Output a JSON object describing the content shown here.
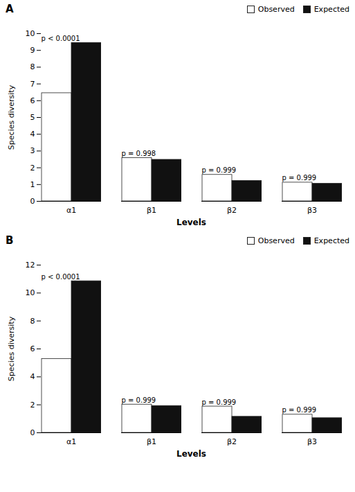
{
  "chart_data": [
    {
      "type": "bar",
      "title": "A",
      "categories": [
        "α1",
        "β1",
        "β2",
        "β3"
      ],
      "series": [
        {
          "name": "Observed",
          "color": "#ffffff",
          "values": [
            6.45,
            2.58,
            1.58,
            1.12
          ]
        },
        {
          "name": "Expected",
          "color": "#111111",
          "values": [
            9.45,
            2.48,
            1.22,
            1.05
          ]
        }
      ],
      "annotations": [
        "p < 0.0001",
        "p = 0.998",
        "p = 0.999",
        "p = 0.999"
      ],
      "xlabel": "Levels",
      "ylabel": "Species diversity",
      "ylim": [
        0,
        10
      ],
      "yticks": [
        0,
        1,
        2,
        3,
        4,
        5,
        6,
        7,
        8,
        9,
        10
      ],
      "legend": "upper right",
      "grid": false
    },
    {
      "type": "bar",
      "title": "B",
      "categories": [
        "α1",
        "β1",
        "β2",
        "β3"
      ],
      "series": [
        {
          "name": "Observed",
          "color": "#ffffff",
          "values": [
            5.28,
            2.02,
            1.88,
            1.3
          ]
        },
        {
          "name": "Expected",
          "color": "#111111",
          "values": [
            10.85,
            1.92,
            1.15,
            1.05
          ]
        }
      ],
      "annotations": [
        "p < 0.0001",
        "p = 0.999",
        "p = 0.999",
        "p = 0.999"
      ],
      "xlabel": "Levels",
      "ylabel": "Species diversity",
      "ylim": [
        0,
        12
      ],
      "yticks": [
        0,
        2,
        4,
        6,
        8,
        10,
        12
      ],
      "legend": "upper right",
      "grid": false
    }
  ]
}
